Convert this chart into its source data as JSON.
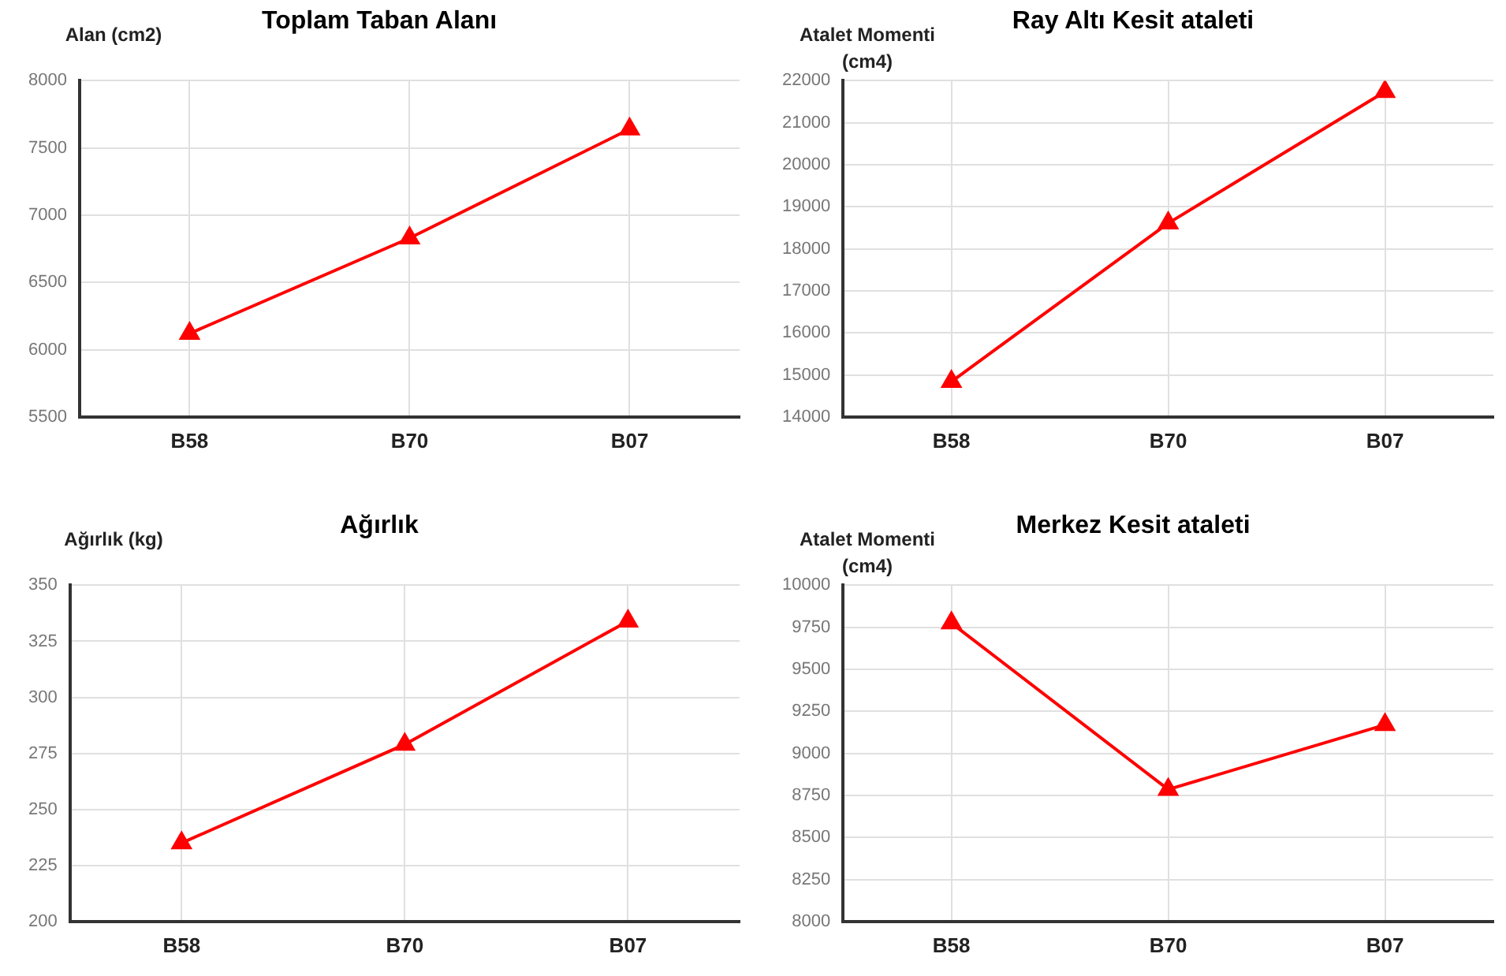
{
  "chart_data": [
    {
      "type": "line",
      "title": "Toplam Taban Alanı",
      "ylabel": "Alan (cm2)",
      "categories": [
        "B58",
        "B70",
        "B07"
      ],
      "series": [
        {
          "color": "#ff0000",
          "values": [
            6120,
            6830,
            7640
          ]
        }
      ],
      "ylim": [
        5500,
        8000
      ],
      "yticks": [
        5500,
        6000,
        6500,
        7000,
        7500,
        8000
      ],
      "grid": true,
      "marker": "triangle",
      "line_style": "solid"
    },
    {
      "type": "line",
      "title": "Ray Altı Kesit ataleti",
      "ylabel": "Atalet Momenti (cm4)",
      "categories": [
        "B58",
        "B70",
        "B07"
      ],
      "series": [
        {
          "color": "#ff0000",
          "values": [
            14840,
            18610,
            21740
          ]
        }
      ],
      "ylim": [
        14000,
        22000
      ],
      "yticks": [
        14000,
        15000,
        16000,
        17000,
        18000,
        19000,
        20000,
        21000,
        22000
      ],
      "grid": true,
      "marker": "triangle",
      "line_style": "solid"
    },
    {
      "type": "line",
      "title": "Ağırlık",
      "ylabel": "Ağırlık (kg)",
      "categories": [
        "B58",
        "B70",
        "B07"
      ],
      "series": [
        {
          "color": "#ff0000",
          "values": [
            235,
            279,
            334
          ]
        }
      ],
      "ylim": [
        200,
        350
      ],
      "yticks": [
        200,
        225,
        250,
        275,
        300,
        325,
        350
      ],
      "grid": true,
      "marker": "triangle",
      "line_style": "solid"
    },
    {
      "type": "line",
      "title": "Merkez Kesit ataleti",
      "ylabel": "Atalet Momenti (cm4)",
      "categories": [
        "B58",
        "B70",
        "B07"
      ],
      "series": [
        {
          "color": "#ff0000",
          "values": [
            9775,
            8785,
            9170
          ]
        }
      ],
      "ylim": [
        8000,
        10000
      ],
      "yticks": [
        8000,
        8250,
        8500,
        8750,
        9000,
        9250,
        9500,
        9750,
        10000
      ],
      "grid": true,
      "marker": "triangle",
      "line_style": "solid"
    }
  ]
}
